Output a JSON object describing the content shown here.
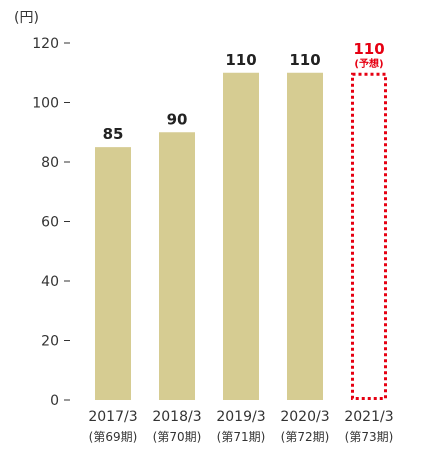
{
  "chart_data": {
    "type": "bar",
    "unit_label": "(円)",
    "categories": [
      "2017/3",
      "2018/3",
      "2019/3",
      "2020/3",
      "2021/3"
    ],
    "category_sublabels": [
      "(第69期)",
      "(第70期)",
      "(第71期)",
      "(第72期)",
      "(第73期)"
    ],
    "values": [
      85,
      90,
      110,
      110,
      110
    ],
    "value_labels": [
      "85",
      "90",
      "110",
      "110",
      "110"
    ],
    "forecast_index": 4,
    "forecast_note": "(予想)",
    "ylim": [
      0,
      120
    ],
    "yticks": [
      0,
      20,
      40,
      60,
      80,
      100,
      120
    ],
    "grid": false,
    "colors": {
      "bar": "#d6cc92",
      "forecast": "#e60012",
      "axis": "#333333",
      "label": "#222222"
    }
  }
}
